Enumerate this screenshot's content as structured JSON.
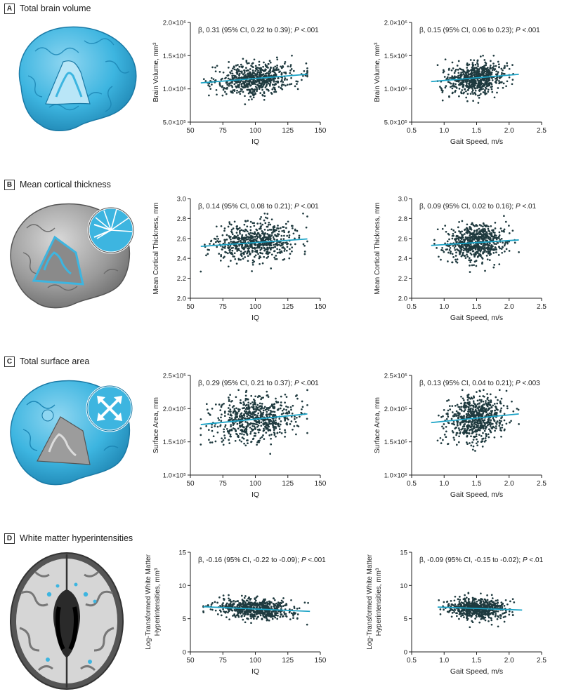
{
  "panels": [
    {
      "letter": "A",
      "title": "Total brain volume"
    },
    {
      "letter": "B",
      "title": "Mean cortical thickness"
    },
    {
      "letter": "C",
      "title": "Total surface area"
    },
    {
      "letter": "D",
      "title": "White matter hyperintensities"
    }
  ],
  "colors": {
    "points": "#1f3a3f",
    "fit": "#1ba3c6",
    "brain": "#3db5e0",
    "brain_gray": "#9a9a9a"
  },
  "icons": [
    "brain-volume-icon",
    "cortical-thickness-icon",
    "surface-area-icon",
    "white-matter-icon"
  ],
  "chart_data": [
    {
      "id": "A-IQ",
      "type": "scatter",
      "xlabel": "IQ",
      "ylabel": "Brain Volume, mm3",
      "ylabel_lines": [
        "Brain Volume, mm³"
      ],
      "xlim": [
        50,
        150
      ],
      "ylim": [
        500000,
        2000000
      ],
      "xticks": [
        "50",
        "75",
        "100",
        "125",
        "150"
      ],
      "yticks": [
        "5.0×10⁵",
        "1.0×10⁶",
        "1.5×10⁶",
        "2.0×10⁶"
      ],
      "annotation": {
        "pre": "β, 0.31 (95% CI, 0.22 to 0.39); ",
        "p": "P",
        "post": " <.001"
      },
      "fit": {
        "x": [
          58,
          140
        ],
        "y": [
          1090000,
          1220000
        ]
      },
      "cloud": {
        "xmean": 100,
        "xsd": 15,
        "xmin": 58,
        "xmax": 140,
        "yint": 1150000,
        "slope": 1580,
        "ysd": 115000,
        "ymin": 750000,
        "ymax": 1500000,
        "n": 650
      }
    },
    {
      "id": "A-Gait",
      "type": "scatter",
      "xlabel": "Gait Speed, m/s",
      "ylabel": "Brain Volume, mm3",
      "ylabel_lines": [
        "Brain Volume, mm³"
      ],
      "xlim": [
        0.5,
        2.5
      ],
      "ylim": [
        500000,
        2000000
      ],
      "xticks": [
        "0.5",
        "1.0",
        "1.5",
        "2.0",
        "2.5"
      ],
      "yticks": [
        "5.0×10⁵",
        "1.0×10⁶",
        "1.5×10⁶",
        "2.0×10⁶"
      ],
      "annotation": {
        "pre": "β, 0.15 (95% CI, 0.06 to 0.23); ",
        "p": "P",
        "post": " <.001"
      },
      "fit": {
        "x": [
          0.8,
          2.15
        ],
        "y": [
          1110000,
          1220000
        ]
      },
      "cloud": {
        "xmean": 1.5,
        "xsd": 0.22,
        "xmin": 0.9,
        "xmax": 2.15,
        "yint": 1160000,
        "slope": 81000,
        "ysd": 115000,
        "ymin": 750000,
        "ymax": 1500000,
        "n": 650
      }
    },
    {
      "id": "B-IQ",
      "type": "scatter",
      "xlabel": "IQ",
      "ylabel": "Mean Cortical Thickness, mm",
      "ylabel_lines": [
        "Mean Cortical Thickness, mm"
      ],
      "xlim": [
        50,
        150
      ],
      "ylim": [
        2.0,
        3.0
      ],
      "xticks": [
        "50",
        "75",
        "100",
        "125",
        "150"
      ],
      "yticks": [
        "2.0",
        "2.2",
        "2.4",
        "2.6",
        "2.8",
        "3.0"
      ],
      "annotation": {
        "pre": "β, 0.14 (95% CI, 0.08 to 0.21); ",
        "p": "P",
        "post": " <.001"
      },
      "fit": {
        "x": [
          58,
          140
        ],
        "y": [
          2.52,
          2.595
        ]
      },
      "cloud": {
        "xmean": 100,
        "xsd": 15,
        "xmin": 58,
        "xmax": 140,
        "yint": 2.56,
        "slope": 0.0009,
        "ysd": 0.09,
        "ymin": 2.24,
        "ymax": 2.85,
        "n": 650
      }
    },
    {
      "id": "B-Gait",
      "type": "scatter",
      "xlabel": "Gait Speed, m/s",
      "ylabel": "Mean Cortical Thickness, mm",
      "ylabel_lines": [
        "Mean Cortical Thickness, mm"
      ],
      "xlim": [
        0.5,
        2.5
      ],
      "ylim": [
        2.0,
        3.0
      ],
      "xticks": [
        "0.5",
        "1.0",
        "1.5",
        "2.0",
        "2.5"
      ],
      "yticks": [
        "2.0",
        "2.2",
        "2.4",
        "2.6",
        "2.8",
        "3.0"
      ],
      "annotation": {
        "pre": "β, 0.09 (95% CI, 0.02 to 0.16); ",
        "p": "P",
        "post": " <.01"
      },
      "fit": {
        "x": [
          0.8,
          2.15
        ],
        "y": [
          2.53,
          2.585
        ]
      },
      "cloud": {
        "xmean": 1.5,
        "xsd": 0.22,
        "xmin": 0.85,
        "xmax": 2.15,
        "yint": 2.56,
        "slope": 0.04,
        "ysd": 0.09,
        "ymin": 2.24,
        "ymax": 2.85,
        "n": 650
      }
    },
    {
      "id": "C-IQ",
      "type": "scatter",
      "xlabel": "IQ",
      "ylabel": "Surface Area, mm",
      "ylabel_lines": [
        "Surface Area, mm"
      ],
      "xlim": [
        50,
        150
      ],
      "ylim": [
        100000,
        250000
      ],
      "xticks": [
        "50",
        "75",
        "100",
        "125",
        "150"
      ],
      "yticks": [
        "1.0×10⁵",
        "1.5×10⁵",
        "2.0×10⁵",
        "2.5×10⁵"
      ],
      "annotation": {
        "pre": "β, 0.29 (95% CI, 0.21 to 0.37); ",
        "p": "P",
        "post": " <.001"
      },
      "fit": {
        "x": [
          58,
          140
        ],
        "y": [
          176000,
          192000
        ]
      },
      "cloud": {
        "xmean": 100,
        "xsd": 15,
        "xmin": 58,
        "xmax": 140,
        "yint": 184000,
        "slope": 195,
        "ysd": 17000,
        "ymin": 132000,
        "ymax": 228000,
        "n": 650
      }
    },
    {
      "id": "C-Gait",
      "type": "scatter",
      "xlabel": "Gait Speed, m/s",
      "ylabel": "Surface Area, mm",
      "ylabel_lines": [
        "Surface Area, mm"
      ],
      "xlim": [
        0.5,
        2.5
      ],
      "ylim": [
        100000,
        250000
      ],
      "xticks": [
        "0.5",
        "1.0",
        "1.5",
        "2.0",
        "2.5"
      ],
      "yticks": [
        "1.0×10⁵",
        "1.5×10⁵",
        "2.0×10⁵",
        "2.5×10⁵"
      ],
      "annotation": {
        "pre": "β, 0.13 (95% CI, 0.04 to 0.21); ",
        "p": "P",
        "post": " <.003"
      },
      "fit": {
        "x": [
          0.8,
          2.15
        ],
        "y": [
          179000,
          192000
        ]
      },
      "cloud": {
        "xmean": 1.5,
        "xsd": 0.22,
        "xmin": 0.9,
        "xmax": 2.15,
        "yint": 185000,
        "slope": 9500,
        "ysd": 17000,
        "ymin": 132000,
        "ymax": 228000,
        "n": 650
      }
    },
    {
      "id": "D-IQ",
      "type": "scatter",
      "xlabel": "IQ",
      "ylabel": "Log-Transformed White Matter Hyperintensities, mm3",
      "ylabel_lines": [
        "Log-Transformed White Matter",
        "Hyperintensities, mm³"
      ],
      "xlim": [
        50,
        150
      ],
      "ylim": [
        0,
        15
      ],
      "xticks": [
        "50",
        "75",
        "100",
        "125",
        "150"
      ],
      "yticks": [
        "0",
        "5",
        "10",
        "15"
      ],
      "annotation": {
        "pre": "β, -0.16 (95% CI, -0.22 to -0.09); ",
        "p": "P",
        "post": " <.001"
      },
      "fit": {
        "x": [
          60,
          142
        ],
        "y": [
          6.8,
          6.1
        ]
      },
      "cloud": {
        "xmean": 100,
        "xsd": 15,
        "xmin": 60,
        "xmax": 142,
        "yint": 6.45,
        "slope": -0.0085,
        "ysd": 0.75,
        "ymin": 2.3,
        "ymax": 9.6,
        "n": 650
      }
    },
    {
      "id": "D-Gait",
      "type": "scatter",
      "xlabel": "Gait Speed, m/s",
      "ylabel": "Log-Transformed White Matter Hyperintensities, mm3",
      "ylabel_lines": [
        "Log-Transformed White Matter",
        "Hyperintensities, mm³"
      ],
      "xlim": [
        0.5,
        2.5
      ],
      "ylim": [
        0,
        15
      ],
      "xticks": [
        "0.5",
        "1.0",
        "1.5",
        "2.0",
        "2.5"
      ],
      "yticks": [
        "0",
        "5",
        "10",
        "15"
      ],
      "annotation": {
        "pre": "β, -0.09 (95% CI, -0.15 to -0.02); ",
        "p": "P",
        "post": " <.01"
      },
      "fit": {
        "x": [
          0.9,
          2.2
        ],
        "y": [
          6.75,
          6.3
        ]
      },
      "cloud": {
        "xmean": 1.5,
        "xsd": 0.22,
        "xmin": 0.9,
        "xmax": 2.2,
        "yint": 6.5,
        "slope": -0.35,
        "ysd": 0.75,
        "ymin": 2.3,
        "ymax": 9.6,
        "n": 650
      }
    }
  ]
}
